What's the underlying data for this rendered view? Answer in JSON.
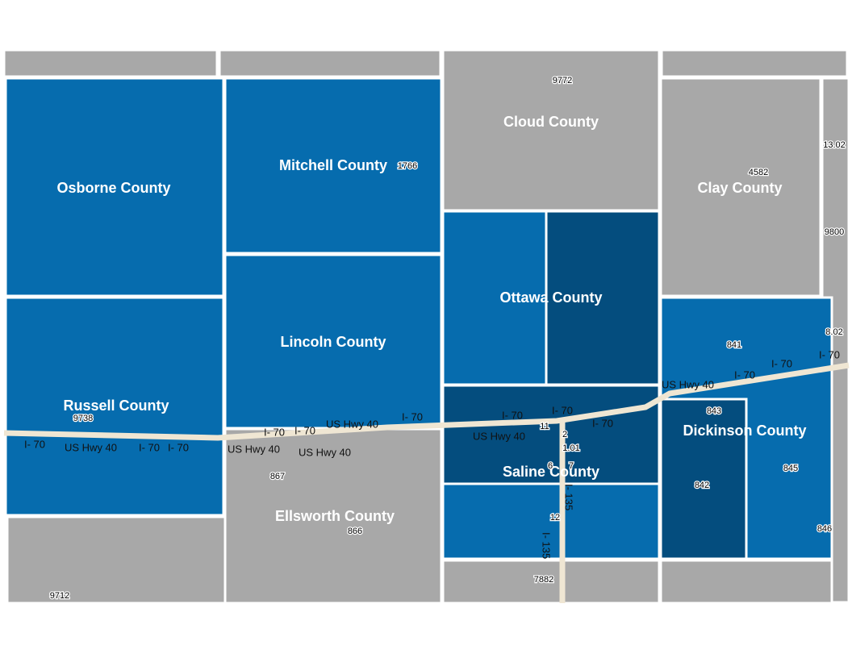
{
  "counties": [
    "Osborne County",
    "Mitchell County",
    "Cloud County",
    "Clay County",
    "Ottawa County",
    "Lincoln County",
    "Russell County",
    "Dickinson County",
    "Saline County",
    "Ellsworth County"
  ],
  "tracts": [
    "9772",
    "13.02",
    "4582",
    "9800",
    "8.02",
    "841",
    "843",
    "845",
    "842",
    "846",
    "1766",
    "9738",
    "867",
    "866",
    "9712",
    "7882",
    "2",
    "11",
    "1.01",
    "6",
    "7",
    "12"
  ],
  "roads": [
    "I- 70",
    "US Hwy 40",
    "I- 135"
  ]
}
